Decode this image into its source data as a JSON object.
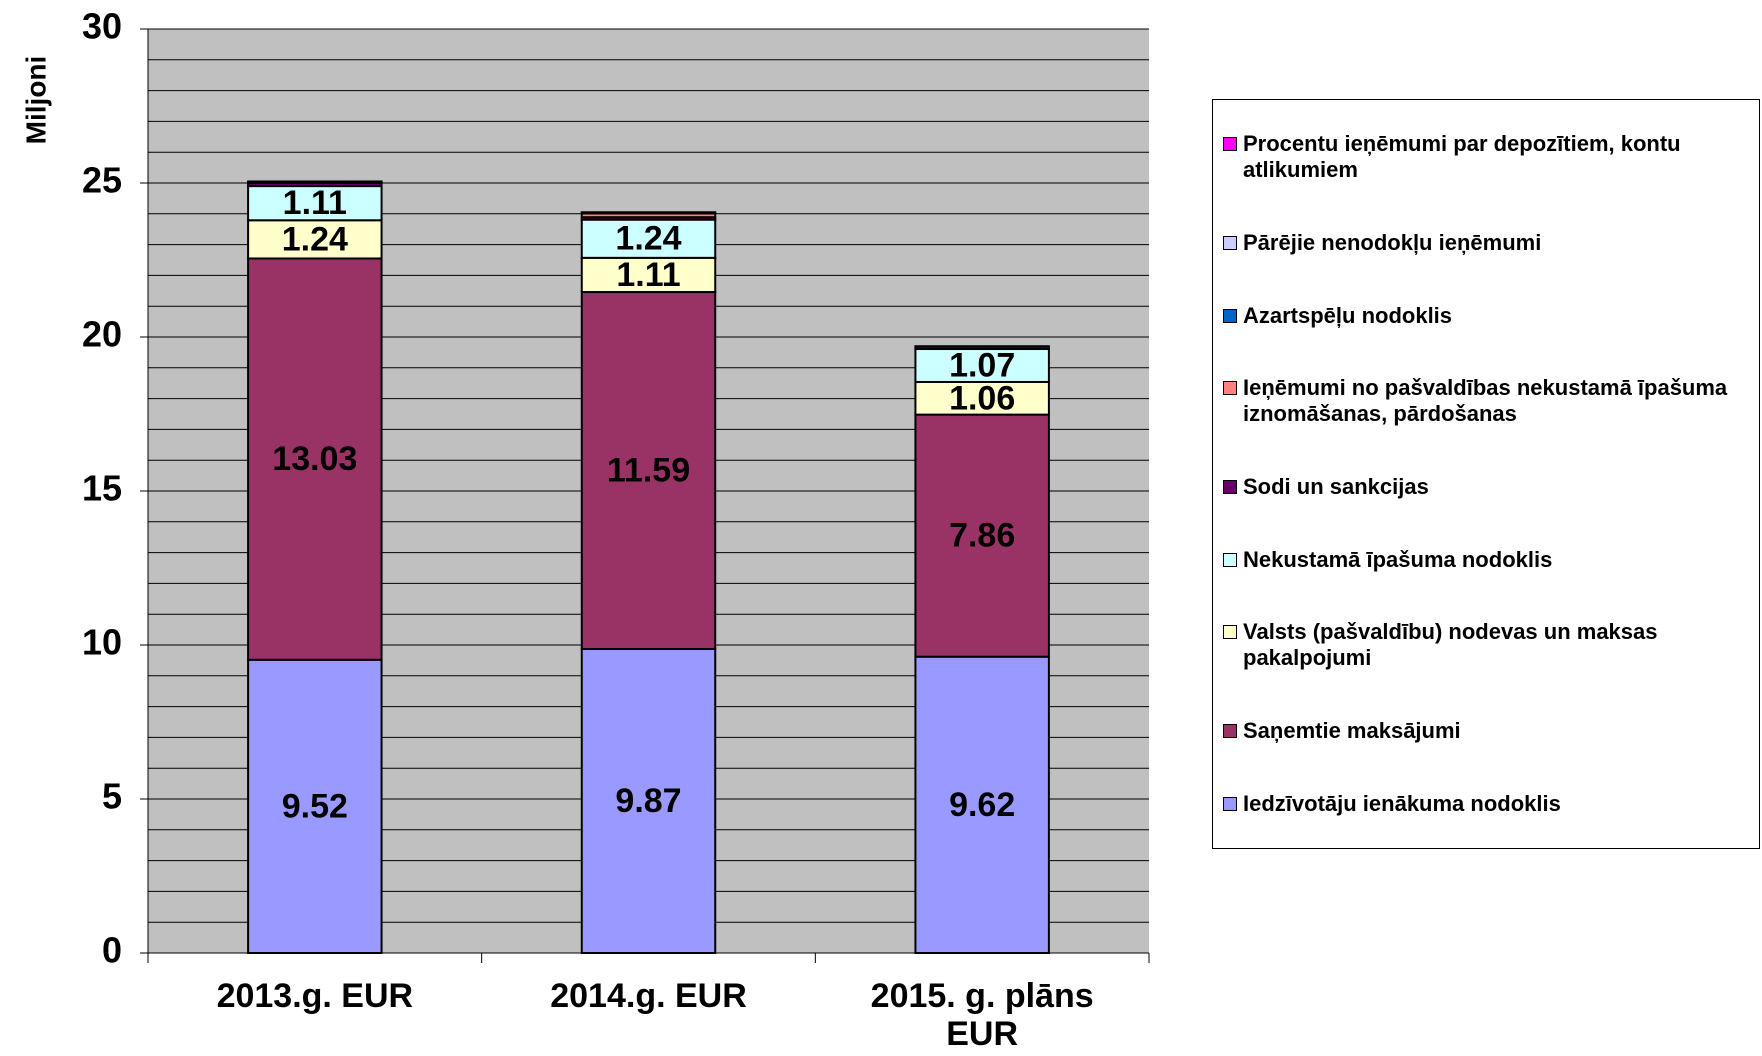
{
  "chart_data": {
    "type": "stacked_bar",
    "y_label": "Miljoni",
    "categories": [
      "2013.g. EUR",
      "2014.g. EUR",
      "2015. g. plāns EUR"
    ],
    "series": [
      {
        "name": "Iedzīvotāju ienākuma nodoklis",
        "color": "#9999ff",
        "values": [
          9.52,
          9.87,
          9.62
        ],
        "show_labels": true
      },
      {
        "name": "Saņemtie maksājumi",
        "color": "#993366",
        "values": [
          13.03,
          11.59,
          7.86
        ],
        "show_labels": true
      },
      {
        "name": "Valsts (pašvaldību) nodevas un maksas pakalpojumi",
        "color": "#ffffcc",
        "values": [
          1.24,
          1.11,
          1.06
        ],
        "show_labels": true
      },
      {
        "name": "Nekustamā īpašuma nodoklis",
        "color": "#ccffff",
        "values": [
          1.11,
          1.24,
          1.07
        ],
        "show_labels": true
      },
      {
        "name": "Sodi un sankcijas",
        "color": "#660066",
        "values": [
          0.1,
          0.08,
          0.08
        ]
      },
      {
        "name": "Ieņēmumi no pašvaldības nekustamā īpašuma iznomāšanas, pārdošanas",
        "color": "#ff8080",
        "values": [
          0.02,
          0.12,
          0.01
        ]
      },
      {
        "name": "Azartspēļu nodoklis",
        "color": "#0066cc",
        "values": [
          0.01,
          0.01,
          0
        ]
      },
      {
        "name": "Pārējie nenodokļu ieņēmumi",
        "color": "#ccccff",
        "values": [
          0.02,
          0.03,
          0
        ]
      },
      {
        "name": "Procentu ieņēmumi par depozītiem, kontu atlikumiem",
        "color": "#ff00ff",
        "values": [
          0,
          0,
          0
        ]
      }
    ],
    "ylim": [
      0,
      30
    ],
    "yticks": [
      0,
      5,
      10,
      15,
      20,
      25,
      30
    ],
    "yminorticks": [
      1,
      2,
      3,
      4,
      6,
      7,
      8,
      9,
      11,
      12,
      13,
      14,
      16,
      17,
      18,
      19,
      21,
      22,
      23,
      24,
      26,
      27,
      28,
      29
    ],
    "grid": true,
    "legend": "right"
  }
}
